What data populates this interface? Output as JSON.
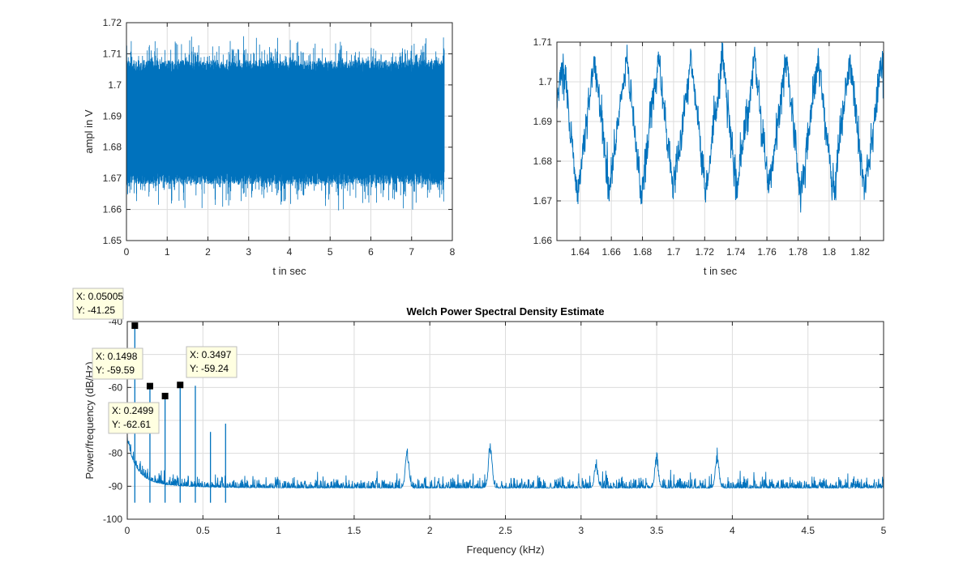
{
  "chart_data": [
    {
      "type": "line",
      "id": "time-full",
      "title": "",
      "xlabel": "t in sec",
      "ylabel": "ampl in V",
      "xlim": [
        0,
        8
      ],
      "ylim": [
        1.65,
        1.72
      ],
      "xticks": [
        "0",
        "1",
        "2",
        "3",
        "4",
        "5",
        "6",
        "7",
        "8"
      ],
      "yticks": [
        "1.65",
        "1.66",
        "1.67",
        "1.68",
        "1.69",
        "1.7",
        "1.71",
        "1.72"
      ],
      "grid": true,
      "signal": {
        "x_end": 7.8,
        "mean": 1.6875,
        "band_low": 1.672,
        "band_high": 1.704,
        "min": 1.659,
        "max": 1.716
      },
      "series_color": "#0072BD"
    },
    {
      "type": "line",
      "id": "time-zoom",
      "title": "",
      "xlabel": "t in sec",
      "ylabel": "",
      "xlim": [
        1.625,
        1.835
      ],
      "ylim": [
        1.66,
        1.71
      ],
      "xticks": [
        "1.64",
        "1.66",
        "1.68",
        "1.7",
        "1.72",
        "1.74",
        "1.76",
        "1.78",
        "1.8",
        "1.82"
      ],
      "yticks": [
        "1.66",
        "1.67",
        "1.68",
        "1.69",
        "1.7",
        "1.71"
      ],
      "grid": true,
      "signal": {
        "period": 0.0205,
        "peak_times": [
          1.629,
          1.6475,
          1.668,
          1.6885,
          1.709,
          1.7295,
          1.75,
          1.7705,
          1.791,
          1.8115
        ],
        "peak": 1.706,
        "trough": 1.672
      },
      "series_color": "#0072BD"
    },
    {
      "type": "line",
      "id": "psd",
      "title": "Welch Power Spectral Density Estimate",
      "xlabel": "Frequency (kHz)",
      "ylabel": "Power/frequency (dB/Hz)",
      "xlim": [
        0,
        5
      ],
      "ylim": [
        -100,
        -40
      ],
      "xticks": [
        "0",
        "0.5",
        "1",
        "1.5",
        "2",
        "2.5",
        "3",
        "3.5",
        "4",
        "4.5",
        "5"
      ],
      "yticks": [
        "-100",
        "-90",
        "-80",
        "-70",
        "-60",
        "-50",
        "-40"
      ],
      "grid": true,
      "series_color": "#0072BD",
      "noise_floor": -90.5,
      "peaks": [
        {
          "x": 0.05005,
          "y": -41.25
        },
        {
          "x": 0.1498,
          "y": -59.59
        },
        {
          "x": 0.2499,
          "y": -62.61
        },
        {
          "x": 0.3497,
          "y": -59.24
        },
        {
          "x": 0.45,
          "y": -59.5
        },
        {
          "x": 0.55,
          "y": -73.5
        },
        {
          "x": 0.65,
          "y": -71
        },
        {
          "x": 1.85,
          "y": -80
        },
        {
          "x": 2.4,
          "y": -78
        },
        {
          "x": 3.1,
          "y": -84
        },
        {
          "x": 3.5,
          "y": -82
        },
        {
          "x": 3.9,
          "y": -81
        }
      ],
      "datatips": [
        {
          "x_label": "X: 0.05005",
          "y_label": "Y: -41.25",
          "x": 0.05005,
          "y": -41.25
        },
        {
          "x_label": "X: 0.1498",
          "y_label": "Y: -59.59",
          "x": 0.1498,
          "y": -59.59
        },
        {
          "x_label": "X: 0.2499",
          "y_label": "Y: -62.61",
          "x": 0.2499,
          "y": -62.61
        },
        {
          "x_label": "X: 0.3497",
          "y_label": "Y: -59.24",
          "x": 0.3497,
          "y": -59.24
        }
      ]
    }
  ]
}
